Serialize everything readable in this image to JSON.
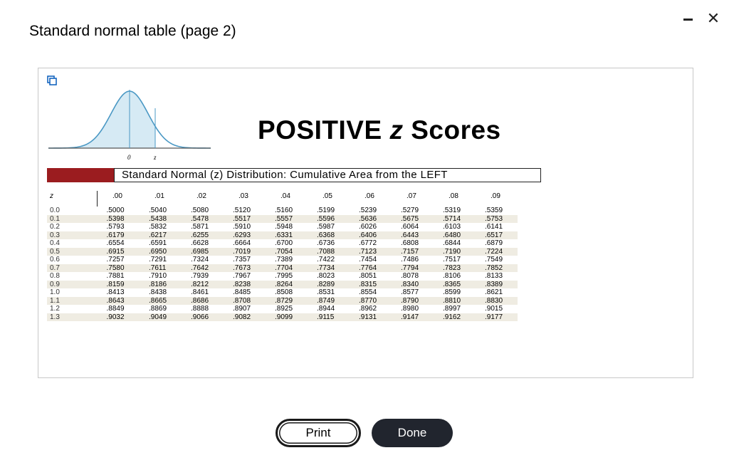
{
  "dialog": {
    "title": "Standard normal table (page 2)"
  },
  "figure": {
    "heading_prefix": "POSITIVE ",
    "heading_var": "z",
    "heading_suffix": " Scores",
    "curve_label_zero": "0",
    "curve_label_z": "z",
    "subtitle": "Standard Normal (z) Distribution: Cumulative Area from the LEFT",
    "accent_color": "#9b1c1f",
    "curve_fill": "#d6eaf4"
  },
  "table": {
    "z_header": "z",
    "columns": [
      ".00",
      ".01",
      ".02",
      ".03",
      ".04",
      ".05",
      ".06",
      ".07",
      ".08",
      ".09"
    ],
    "rows": [
      {
        "z": "0.0",
        "values": [
          ".5000",
          ".5040",
          ".5080",
          ".5120",
          ".5160",
          ".5199",
          ".5239",
          ".5279",
          ".5319",
          ".5359"
        ]
      },
      {
        "z": "0.1",
        "values": [
          ".5398",
          ".5438",
          ".5478",
          ".5517",
          ".5557",
          ".5596",
          ".5636",
          ".5675",
          ".5714",
          ".5753"
        ]
      },
      {
        "z": "0.2",
        "values": [
          ".5793",
          ".5832",
          ".5871",
          ".5910",
          ".5948",
          ".5987",
          ".6026",
          ".6064",
          ".6103",
          ".6141"
        ]
      },
      {
        "z": "0.3",
        "values": [
          ".6179",
          ".6217",
          ".6255",
          ".6293",
          ".6331",
          ".6368",
          ".6406",
          ".6443",
          ".6480",
          ".6517"
        ]
      },
      {
        "z": "0.4",
        "values": [
          ".6554",
          ".6591",
          ".6628",
          ".6664",
          ".6700",
          ".6736",
          ".6772",
          ".6808",
          ".6844",
          ".6879"
        ]
      },
      {
        "z": "0.5",
        "values": [
          ".6915",
          ".6950",
          ".6985",
          ".7019",
          ".7054",
          ".7088",
          ".7123",
          ".7157",
          ".7190",
          ".7224"
        ]
      },
      {
        "z": "0.6",
        "values": [
          ".7257",
          ".7291",
          ".7324",
          ".7357",
          ".7389",
          ".7422",
          ".7454",
          ".7486",
          ".7517",
          ".7549"
        ]
      },
      {
        "z": "0.7",
        "values": [
          ".7580",
          ".7611",
          ".7642",
          ".7673",
          ".7704",
          ".7734",
          ".7764",
          ".7794",
          ".7823",
          ".7852"
        ]
      },
      {
        "z": "0.8",
        "values": [
          ".7881",
          ".7910",
          ".7939",
          ".7967",
          ".7995",
          ".8023",
          ".8051",
          ".8078",
          ".8106",
          ".8133"
        ]
      },
      {
        "z": "0.9",
        "values": [
          ".8159",
          ".8186",
          ".8212",
          ".8238",
          ".8264",
          ".8289",
          ".8315",
          ".8340",
          ".8365",
          ".8389"
        ]
      },
      {
        "z": "1.0",
        "values": [
          ".8413",
          ".8438",
          ".8461",
          ".8485",
          ".8508",
          ".8531",
          ".8554",
          ".8577",
          ".8599",
          ".8621"
        ]
      },
      {
        "z": "1.1",
        "values": [
          ".8643",
          ".8665",
          ".8686",
          ".8708",
          ".8729",
          ".8749",
          ".8770",
          ".8790",
          ".8810",
          ".8830"
        ]
      },
      {
        "z": "1.2",
        "values": [
          ".8849",
          ".8869",
          ".8888",
          ".8907",
          ".8925",
          ".8944",
          ".8962",
          ".8980",
          ".8997",
          ".9015"
        ]
      },
      {
        "z": "1.3",
        "values": [
          ".9032",
          ".9049",
          ".9066",
          ".9082",
          ".9099",
          ".9115",
          ".9131",
          ".9147",
          ".9162",
          ".9177"
        ]
      }
    ]
  },
  "buttons": {
    "print": "Print",
    "done": "Done"
  }
}
